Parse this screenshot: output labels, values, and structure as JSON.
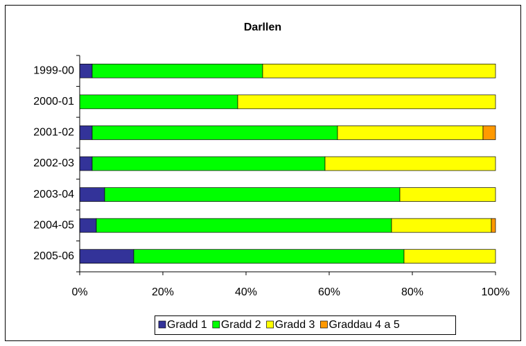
{
  "chart_data": {
    "type": "stacked_hbar",
    "title": "Darllen",
    "categories": [
      "1999-00",
      "2000-01",
      "2001-02",
      "2002-03",
      "2003-04",
      "2004-05",
      "2005-06"
    ],
    "series": [
      {
        "name": "Gradd 1",
        "color": "#333399",
        "values": [
          3,
          0,
          3,
          3,
          6,
          4,
          13
        ]
      },
      {
        "name": "Gradd 2",
        "color": "#00ff00",
        "values": [
          41,
          38,
          59,
          56,
          71,
          71,
          65
        ]
      },
      {
        "name": "Gradd 3",
        "color": "#ffff00",
        "values": [
          56,
          62,
          35,
          41,
          23,
          24,
          22
        ]
      },
      {
        "name": "Graddau 4 a 5",
        "color": "#ff9900",
        "values": [
          0,
          0,
          3,
          0,
          0,
          1,
          0
        ]
      }
    ],
    "xlim": [
      0,
      100
    ],
    "xticks": [
      {
        "value": 0,
        "label": "0%"
      },
      {
        "value": 20,
        "label": "20%"
      },
      {
        "value": 40,
        "label": "40%"
      },
      {
        "value": 60,
        "label": "60%"
      },
      {
        "value": 80,
        "label": "80%"
      },
      {
        "value": 100,
        "label": "100%"
      }
    ],
    "legend": "bottom"
  }
}
